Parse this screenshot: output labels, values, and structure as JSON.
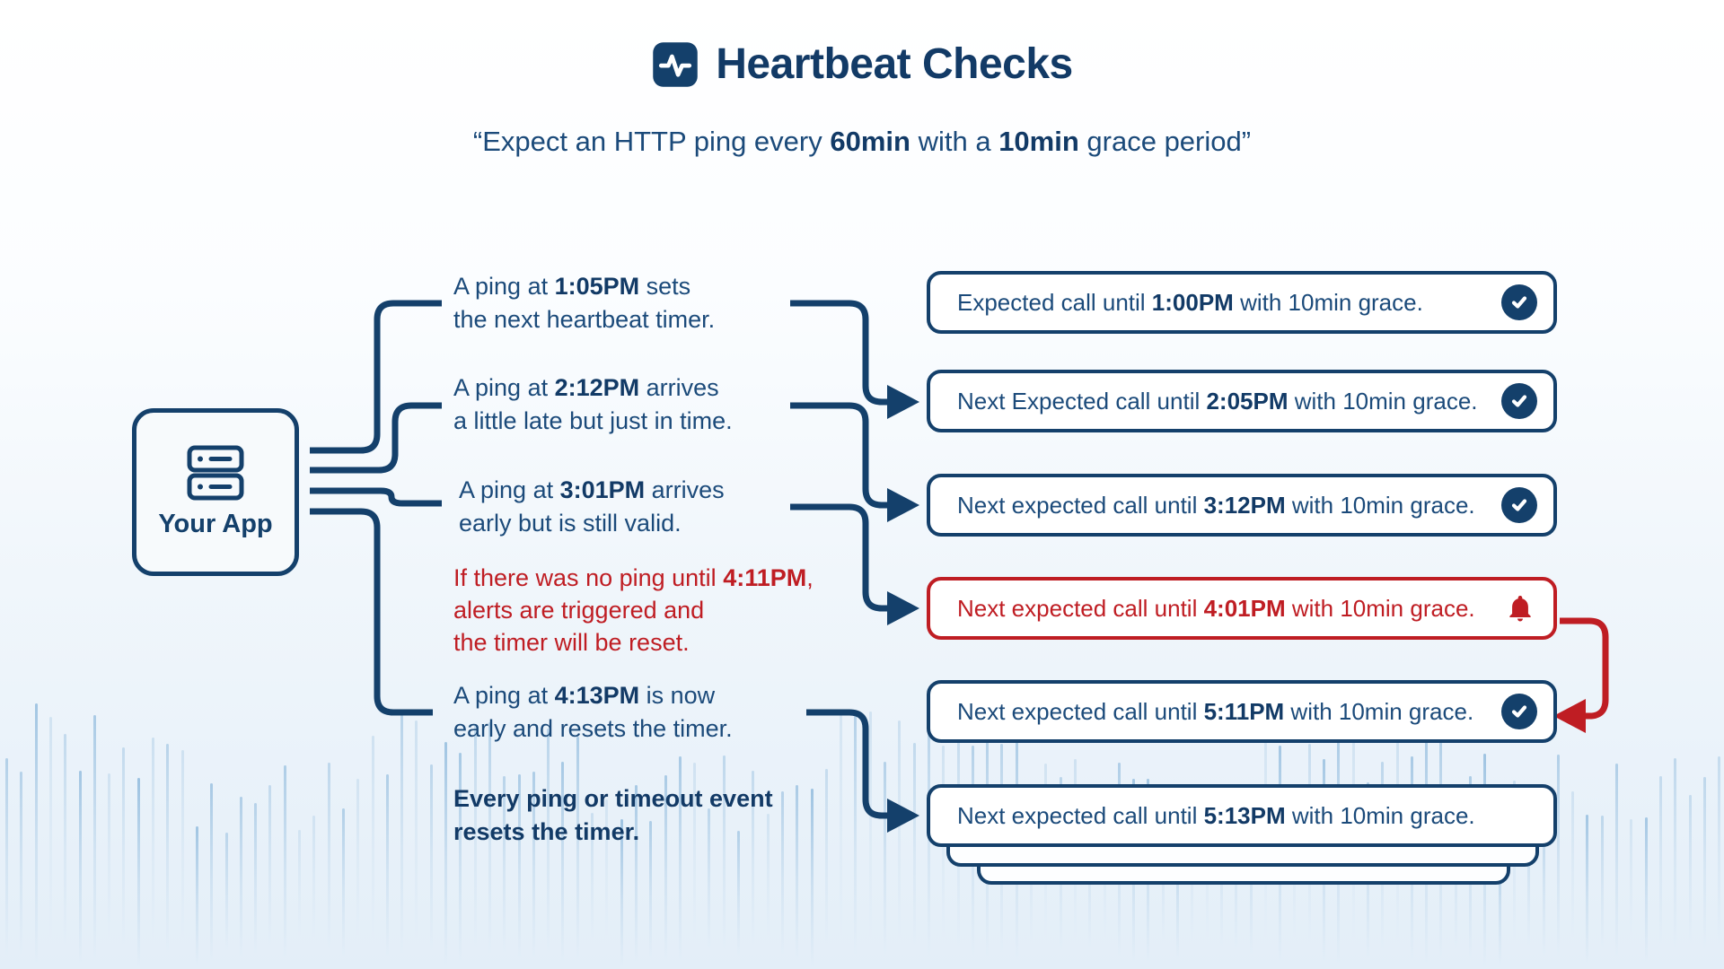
{
  "header": {
    "title": "Heartbeat Checks",
    "icon": "heartbeat-pulse-icon",
    "subtitle": [
      [
        {
          "t": "“Expect an HTTP ping every "
        },
        {
          "t": "60min",
          "b": true
        },
        {
          "t": " with a "
        },
        {
          "t": "10min",
          "b": true
        },
        {
          "t": " grace period”"
        }
      ]
    ]
  },
  "app": {
    "label": "Your App",
    "icon": "server-icon"
  },
  "notes": [
    {
      "style": "navy",
      "lines": [
        [
          {
            "t": "A ping at "
          },
          {
            "t": "1:05PM",
            "b": true
          },
          {
            "t": " sets"
          }
        ],
        [
          {
            "t": "the next heartbeat timer."
          }
        ]
      ]
    },
    {
      "style": "navy",
      "lines": [
        [
          {
            "t": "A ping at "
          },
          {
            "t": "2:12PM",
            "b": true
          },
          {
            "t": " arrives"
          }
        ],
        [
          {
            "t": "a little late but just in time."
          }
        ]
      ]
    },
    {
      "style": "navy",
      "lines": [
        [
          {
            "t": "A ping at "
          },
          {
            "t": "3:01PM",
            "b": true
          },
          {
            "t": " arrives"
          }
        ],
        [
          {
            "t": "early but is still valid."
          }
        ]
      ]
    },
    {
      "style": "red",
      "lines": [
        [
          {
            "t": "If there was no ping until "
          },
          {
            "t": "4:11PM",
            "b": true
          },
          {
            "t": ","
          }
        ],
        [
          {
            "t": "alerts are triggered and"
          }
        ],
        [
          {
            "t": "the timer will be reset."
          }
        ]
      ]
    },
    {
      "style": "navy",
      "lines": [
        [
          {
            "t": "A ping at "
          },
          {
            "t": "4:13PM",
            "b": true
          },
          {
            "t": " is now"
          }
        ],
        [
          {
            "t": "early and resets the timer."
          }
        ]
      ]
    },
    {
      "style": "navy-bold",
      "lines": [
        [
          {
            "t": "Every ping or timeout event",
            "b": true
          }
        ],
        [
          {
            "t": "resets the timer.",
            "b": true
          }
        ]
      ]
    }
  ],
  "checks": [
    {
      "variant": "ok",
      "icon": "check-circle-icon",
      "text": [
        [
          {
            "t": "Expected call until "
          },
          {
            "t": "1:00PM",
            "b": true
          },
          {
            "t": " with 10min grace."
          }
        ]
      ]
    },
    {
      "variant": "ok",
      "icon": "check-circle-icon",
      "text": [
        [
          {
            "t": "Next Expected call until "
          },
          {
            "t": "2:05PM",
            "b": true
          },
          {
            "t": " with 10min grace."
          }
        ]
      ]
    },
    {
      "variant": "ok",
      "icon": "check-circle-icon",
      "text": [
        [
          {
            "t": "Next expected call until "
          },
          {
            "t": "3:12PM",
            "b": true
          },
          {
            "t": " with 10min grace."
          }
        ]
      ]
    },
    {
      "variant": "alert",
      "icon": "bell-icon",
      "text": [
        [
          {
            "t": "Next expected call until "
          },
          {
            "t": "4:01PM",
            "b": true
          },
          {
            "t": " with 10min grace."
          }
        ]
      ]
    },
    {
      "variant": "ok",
      "icon": "check-circle-icon",
      "text": [
        [
          {
            "t": "Next expected call until "
          },
          {
            "t": "5:11PM",
            "b": true
          },
          {
            "t": " with 10min grace."
          }
        ]
      ]
    },
    {
      "variant": "plain",
      "icon": null,
      "text": [
        [
          {
            "t": "Next expected call until "
          },
          {
            "t": "5:13PM",
            "b": true
          },
          {
            "t": " with 10min grace."
          }
        ]
      ]
    }
  ],
  "colors": {
    "navy": "#14406b",
    "navy_text": "#1b4a7a",
    "red": "#bf1d23",
    "wave_blue": "#84b3d9"
  }
}
